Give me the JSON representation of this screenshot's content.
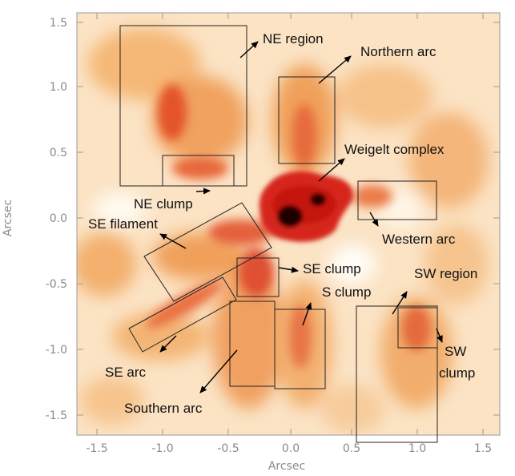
{
  "axes": {
    "xlabel": "Arcsec",
    "ylabel": "Arcsec",
    "xlim": [
      -1.6,
      1.6
    ],
    "ylim": [
      -1.6,
      1.6
    ],
    "xticks": [
      "-1.5",
      "-1.0",
      "-0.5",
      "0.0",
      "0.5",
      "1.0",
      "1.5"
    ],
    "yticks": [
      "1.5",
      "1.0",
      "0.5",
      "0.0",
      "-0.5",
      "-1.0",
      "-1.5"
    ]
  },
  "labels": {
    "ne_region": "NE region",
    "northern_arc": "Northern arc",
    "weigelt_complex": "Weigelt complex",
    "ne_clump": "NE clump",
    "se_filament": "SE filament",
    "western_arc": "Western arc",
    "se_clump": "SE clump",
    "sw_region": "SW region",
    "s_clump": "S clump",
    "se_arc": "SE arc",
    "sw_clump_line1": "SW",
    "sw_clump_line2": "clump",
    "southern_arc": "Southern arc"
  },
  "colors": {
    "background": "#ffffff",
    "map_light": "#fdebd0",
    "map_mid": "#f2a25a",
    "map_strong": "#d8301c",
    "map_core": "#0a0000"
  }
}
